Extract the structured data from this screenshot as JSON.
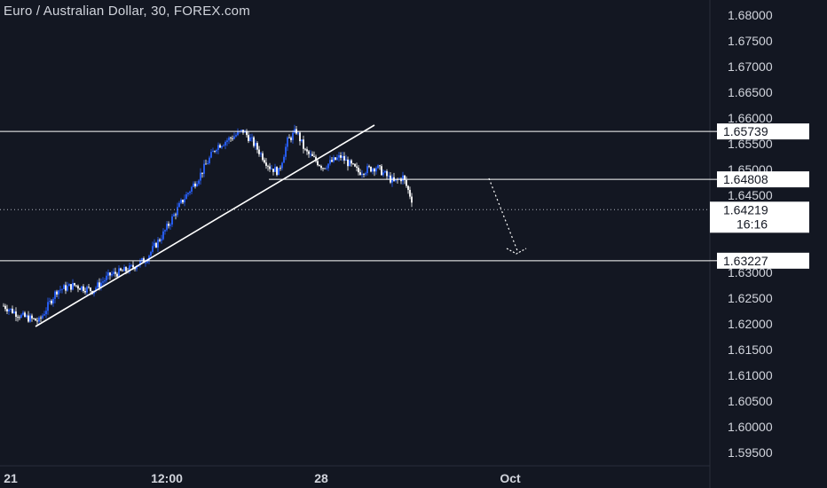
{
  "chart_data": {
    "type": "candlestick",
    "title": "Euro / Australian Dollar, 30, FOREX.com",
    "ylim": [
      1.5925,
      1.6825
    ],
    "y_ticks": [
      1.68,
      1.675,
      1.67,
      1.665,
      1.66,
      1.655,
      1.65,
      1.645,
      1.63,
      1.625,
      1.62,
      1.615,
      1.61,
      1.605,
      1.6,
      1.595
    ],
    "y_tick_labels": [
      "1.68000",
      "1.67500",
      "1.67000",
      "1.66500",
      "1.66000",
      "1.65500",
      "1.65000",
      "1.64500",
      "1.63000",
      "1.62500",
      "1.62000",
      "1.61500",
      "1.61000",
      "1.60500",
      "1.60000",
      "1.59500"
    ],
    "x_tick_labels": [
      "21",
      "12:00",
      "28",
      "Oct"
    ],
    "horizontal_levels": [
      {
        "value": 1.65739,
        "label": "1.65739"
      },
      {
        "value": 1.64808,
        "label": "1.64808"
      },
      {
        "value": 1.63227,
        "label": "1.63227"
      }
    ],
    "current_price": {
      "value": 1.64219,
      "label": "1.64219",
      "countdown": "16:16"
    },
    "bar_count": 200,
    "price_path": [
      [
        0,
        1.6235
      ],
      [
        10,
        1.6215
      ],
      [
        20,
        1.6205
      ],
      [
        30,
        1.6265
      ],
      [
        40,
        1.6275
      ],
      [
        50,
        1.6265
      ],
      [
        60,
        1.6295
      ],
      [
        70,
        1.6305
      ],
      [
        80,
        1.6325
      ],
      [
        90,
        1.6375
      ],
      [
        100,
        1.6435
      ],
      [
        110,
        1.6485
      ],
      [
        120,
        1.6545
      ],
      [
        130,
        1.6565
      ],
      [
        135,
        1.6575
      ],
      [
        140,
        1.6555
      ],
      [
        150,
        1.6505
      ],
      [
        155,
        1.6495
      ],
      [
        160,
        1.6555
      ],
      [
        165,
        1.6575
      ],
      [
        170,
        1.6535
      ],
      [
        180,
        1.6505
      ],
      [
        190,
        1.6525
      ],
      [
        200,
        1.6495
      ],
      [
        210,
        1.6505
      ],
      [
        220,
        1.6475
      ],
      [
        225,
        1.6485
      ],
      [
        230,
        1.6442
      ]
    ],
    "grid": false,
    "colors": {
      "background": "#131722",
      "up": "#2962ff",
      "down": "#ffffff",
      "lines": "#ffffff",
      "text": "#d1d4dc"
    }
  }
}
